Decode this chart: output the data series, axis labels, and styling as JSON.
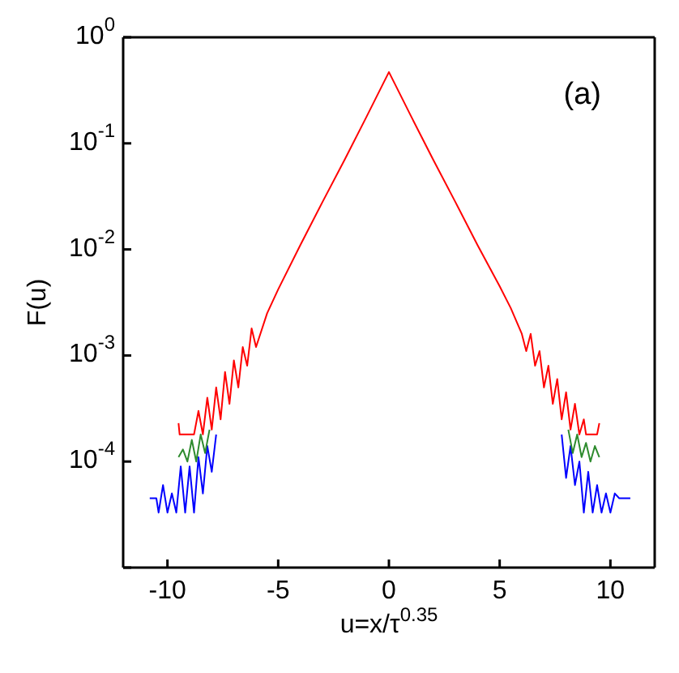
{
  "chart_data": {
    "type": "line",
    "xlabel": "u=x/τ$^{0.35}$",
    "ylabel": "F(u)",
    "annotations": [
      "(a)"
    ],
    "log": "y",
    "xlim": [
      -12,
      12
    ],
    "xticks": [
      -10,
      -5,
      0,
      5,
      10
    ],
    "ylim": [
      1e-05,
      1
    ],
    "yticks": [
      {
        "value": 1,
        "label": "10$^{0}$"
      },
      {
        "value": 0.1,
        "label": "10$^{-1}$"
      },
      {
        "value": 0.01,
        "label": "10$^{-2}$"
      },
      {
        "value": 0.001,
        "label": "10$^{-3}$"
      },
      {
        "value": 0.0001,
        "label": "10$^{-4}$"
      },
      {
        "value": 1e-05,
        "label": null
      }
    ],
    "series": [
      {
        "color": "#0000ff",
        "x": [
          -10.8,
          -10.5,
          -10.4,
          -10.2,
          -10,
          -9.8,
          -9.6,
          -9.4,
          -9.2,
          -9,
          -8.8,
          -8.6,
          -8.4,
          -8.2,
          -8,
          -7.8,
          0,
          7.8,
          8,
          8.2,
          8.4,
          8.6,
          8.8,
          9,
          9.2,
          9.4,
          9.6,
          9.8,
          10,
          10.2,
          10.4,
          10.9
        ],
        "values": [
          4.5e-05,
          4.5e-05,
          3.3e-05,
          6e-05,
          3.3e-05,
          5e-05,
          3.3e-05,
          9e-05,
          3.3e-05,
          9e-05,
          3.3e-05,
          0.00011,
          5e-05,
          0.00014,
          8e-05,
          0.00018,
          null,
          0.00018,
          7e-05,
          0.00014,
          6e-05,
          0.0001,
          3.3e-05,
          8e-05,
          3.3e-05,
          6e-05,
          3.3e-05,
          5e-05,
          3.3e-05,
          5e-05,
          4.5e-05,
          4.5e-05
        ]
      },
      {
        "color": "#2e8b2e",
        "x": [
          -9.5,
          -9.3,
          -9.1,
          -8.9,
          -8.7,
          -8.5,
          -8.3,
          -8.1,
          0,
          8.1,
          8.3,
          8.5,
          8.7,
          8.9,
          9.1,
          9.3,
          9.5
        ],
        "values": [
          0.00011,
          0.00013,
          0.0001,
          0.00016,
          0.0001,
          0.00018,
          0.00012,
          0.0002,
          null,
          0.0002,
          0.00012,
          0.00018,
          0.00011,
          0.00015,
          0.0001,
          0.00014,
          0.00011
        ]
      },
      {
        "color": "#ff0000",
        "x": [
          -9.5,
          -9.45,
          -8.8,
          -8.6,
          -8.4,
          -8.2,
          -8,
          -7.8,
          -7.6,
          -7.4,
          -7.2,
          -7,
          -6.8,
          -6.6,
          -6.4,
          -6.2,
          -6,
          -5.5,
          -5,
          -4,
          -3,
          -2,
          -1,
          0,
          1,
          2,
          3,
          4,
          5,
          5.5,
          6,
          6.2,
          6.4,
          6.6,
          6.8,
          7,
          7.2,
          7.4,
          7.6,
          7.8,
          8,
          8.2,
          8.4,
          8.6,
          8.8,
          8.9,
          9.4,
          9.5
        ],
        "values": [
          0.00023,
          0.00018,
          0.00018,
          0.0003,
          0.00018,
          0.0004,
          0.0002,
          0.0005,
          0.00025,
          0.0007,
          0.00035,
          0.0009,
          0.0005,
          0.0012,
          0.0008,
          0.0018,
          0.0012,
          0.0025,
          0.0042,
          0.011,
          0.028,
          0.07,
          0.18,
          0.47,
          0.18,
          0.07,
          0.028,
          0.011,
          0.0045,
          0.0028,
          0.0016,
          0.0011,
          0.0016,
          0.0008,
          0.0011,
          0.0005,
          0.0008,
          0.00035,
          0.0006,
          0.00025,
          0.00045,
          0.0002,
          0.00035,
          0.00018,
          0.00025,
          0.00018,
          0.00018,
          0.00023
        ]
      }
    ]
  }
}
